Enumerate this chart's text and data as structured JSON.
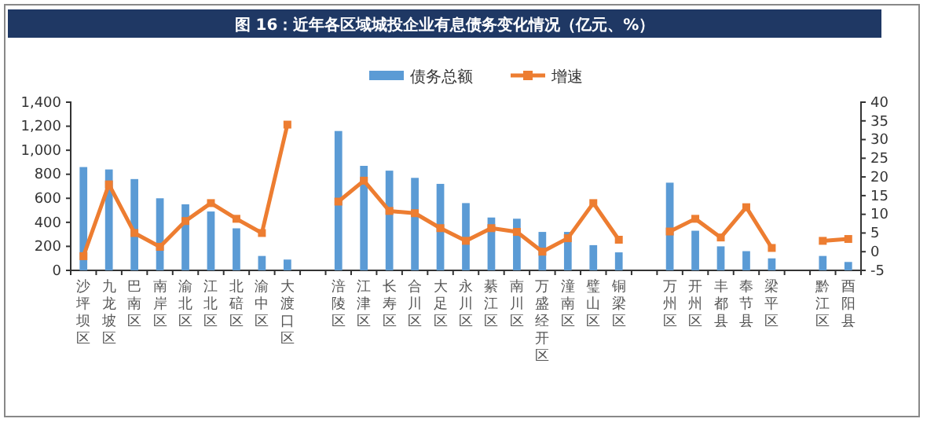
{
  "chart_data": {
    "type": "bar",
    "title": "图 16：近年各区域城投企业有息债务变化情况（亿元、%）",
    "categories": [
      "沙坪坝区",
      "九龙坡区",
      "巴南区",
      "南岸区",
      "渝北区",
      "江北区",
      "北碚区",
      "渝中区",
      "大渡口区",
      null,
      "涪陵区",
      "江津区",
      "长寿区",
      "合川区",
      "大足区",
      "永川区",
      "綦江区",
      "南川区",
      "万盛经开区",
      "潼南区",
      "璧山区",
      "铜梁区",
      null,
      "万州区",
      "开州区",
      "丰都县",
      "奉节县",
      "梁平区",
      null,
      "黔江区",
      "酉阳县"
    ],
    "series": [
      {
        "name": "债务总额",
        "color": "#5b9bd5",
        "values": [
          860,
          840,
          760,
          600,
          550,
          490,
          350,
          120,
          90,
          null,
          1160,
          870,
          830,
          770,
          720,
          560,
          440,
          430,
          320,
          320,
          210,
          150,
          null,
          730,
          330,
          200,
          160,
          100,
          null,
          120,
          70
        ]
      },
      {
        "name": "增速",
        "type": "line",
        "axis": "y2",
        "color": "#ed7d31",
        "values": [
          -1.2,
          18,
          5,
          1.3,
          8.2,
          13,
          8.8,
          5,
          34,
          null,
          13.4,
          19,
          10.9,
          10.3,
          6.3,
          2.9,
          6.3,
          5.3,
          0,
          3.6,
          13,
          3.2,
          null,
          5.4,
          8.8,
          3.8,
          11.9,
          1,
          null,
          2.9,
          3.4
        ]
      }
    ],
    "ylim": [
      0,
      1400
    ],
    "yticks": [
      0,
      200,
      400,
      600,
      800,
      {
        "value": 1000,
        "label": "1,000"
      },
      {
        "value": 1200,
        "label": "1,200"
      },
      {
        "value": 1400,
        "label": "1,400"
      }
    ],
    "y2lim": [
      -5,
      40
    ],
    "y2ticks": [
      -5,
      0,
      5,
      10,
      15,
      20,
      25,
      30,
      35,
      40
    ],
    "legend": "top",
    "grid": false,
    "marker": "square",
    "line_style": "solid"
  }
}
